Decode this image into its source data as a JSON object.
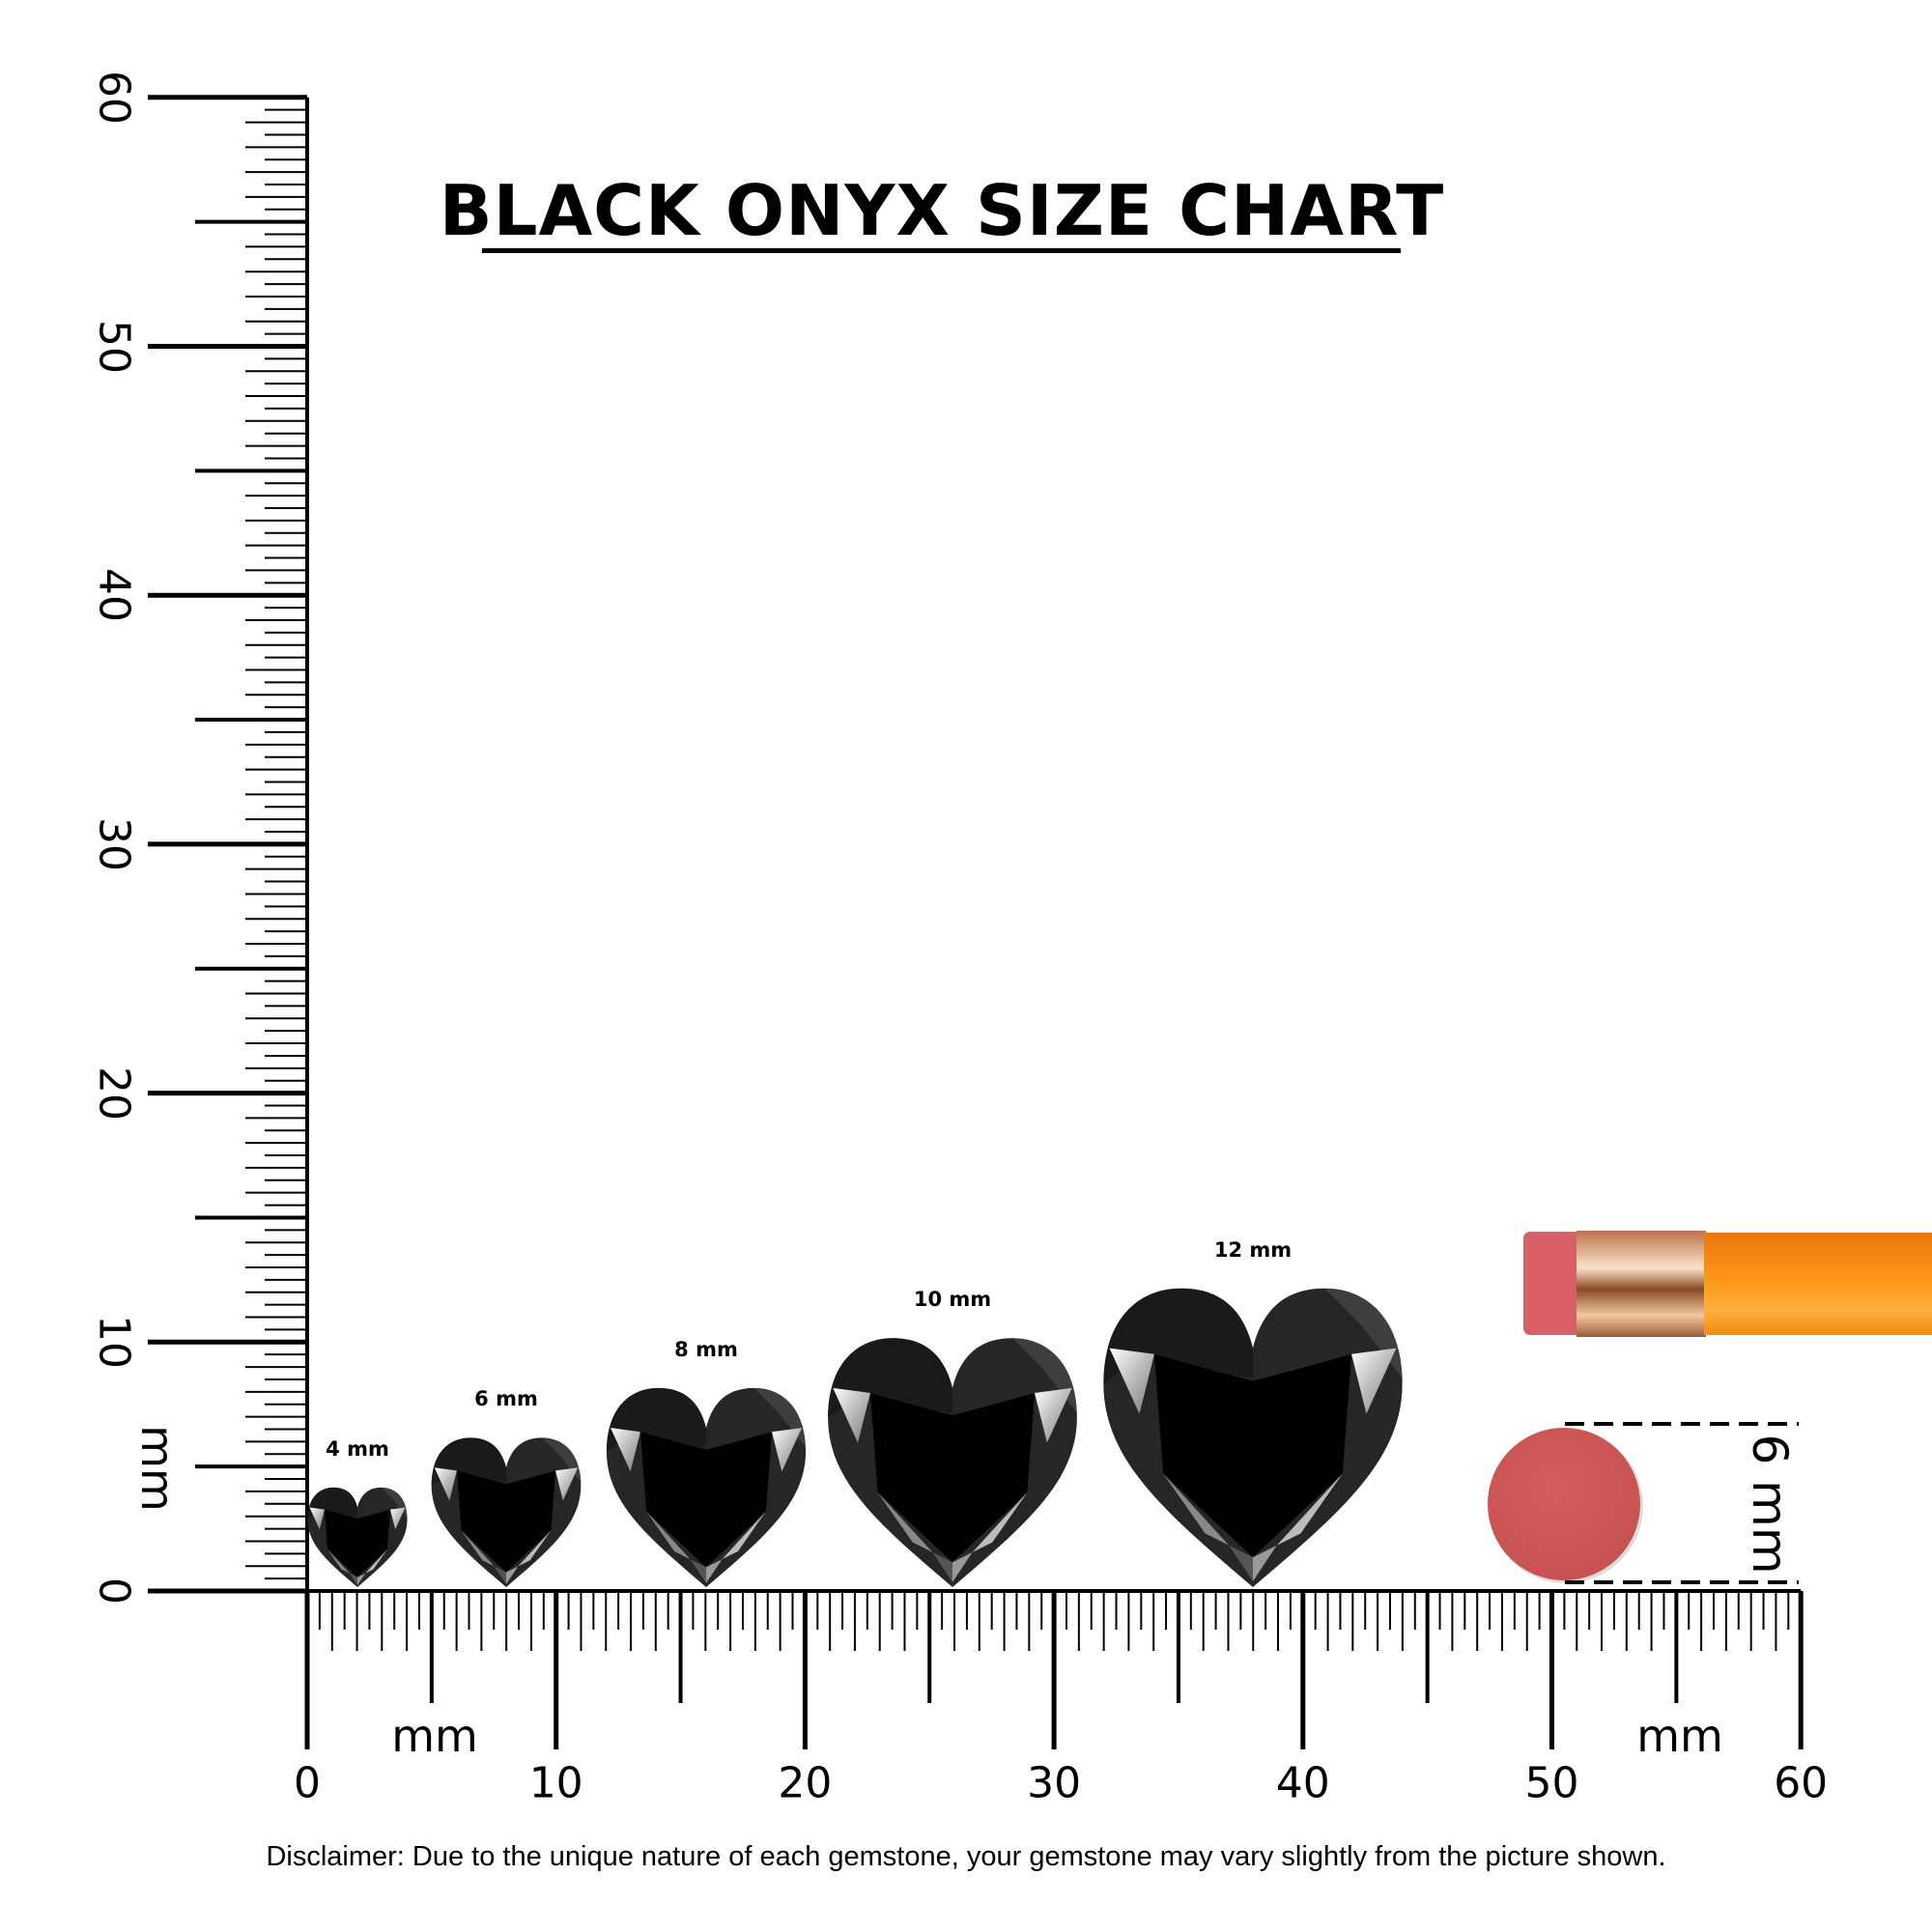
{
  "title": "BLACK ONYX SIZE CHART",
  "ruler": {
    "unit_label": "mm",
    "vertical_labels": [
      "0",
      "10",
      "20",
      "30",
      "40",
      "50",
      "60"
    ],
    "horizontal_labels": [
      "0",
      "10",
      "20",
      "30",
      "40",
      "50",
      "60"
    ],
    "max_mm": 60
  },
  "gems": [
    {
      "label": "4 mm",
      "size_mm": 4
    },
    {
      "label": "6 mm",
      "size_mm": 6
    },
    {
      "label": "8 mm",
      "size_mm": 8
    },
    {
      "label": "10 mm",
      "size_mm": 10
    },
    {
      "label": "12 mm",
      "size_mm": 12
    }
  ],
  "reference": {
    "eraser_label": "6 mm",
    "eraser_mm": 6,
    "eraser_color": "#d05a5a",
    "pencil_color": "#f7941d"
  },
  "disclaimer": "Disclaimer: Due to the unique nature of each gemstone, your gemstone may vary slightly from the picture shown."
}
